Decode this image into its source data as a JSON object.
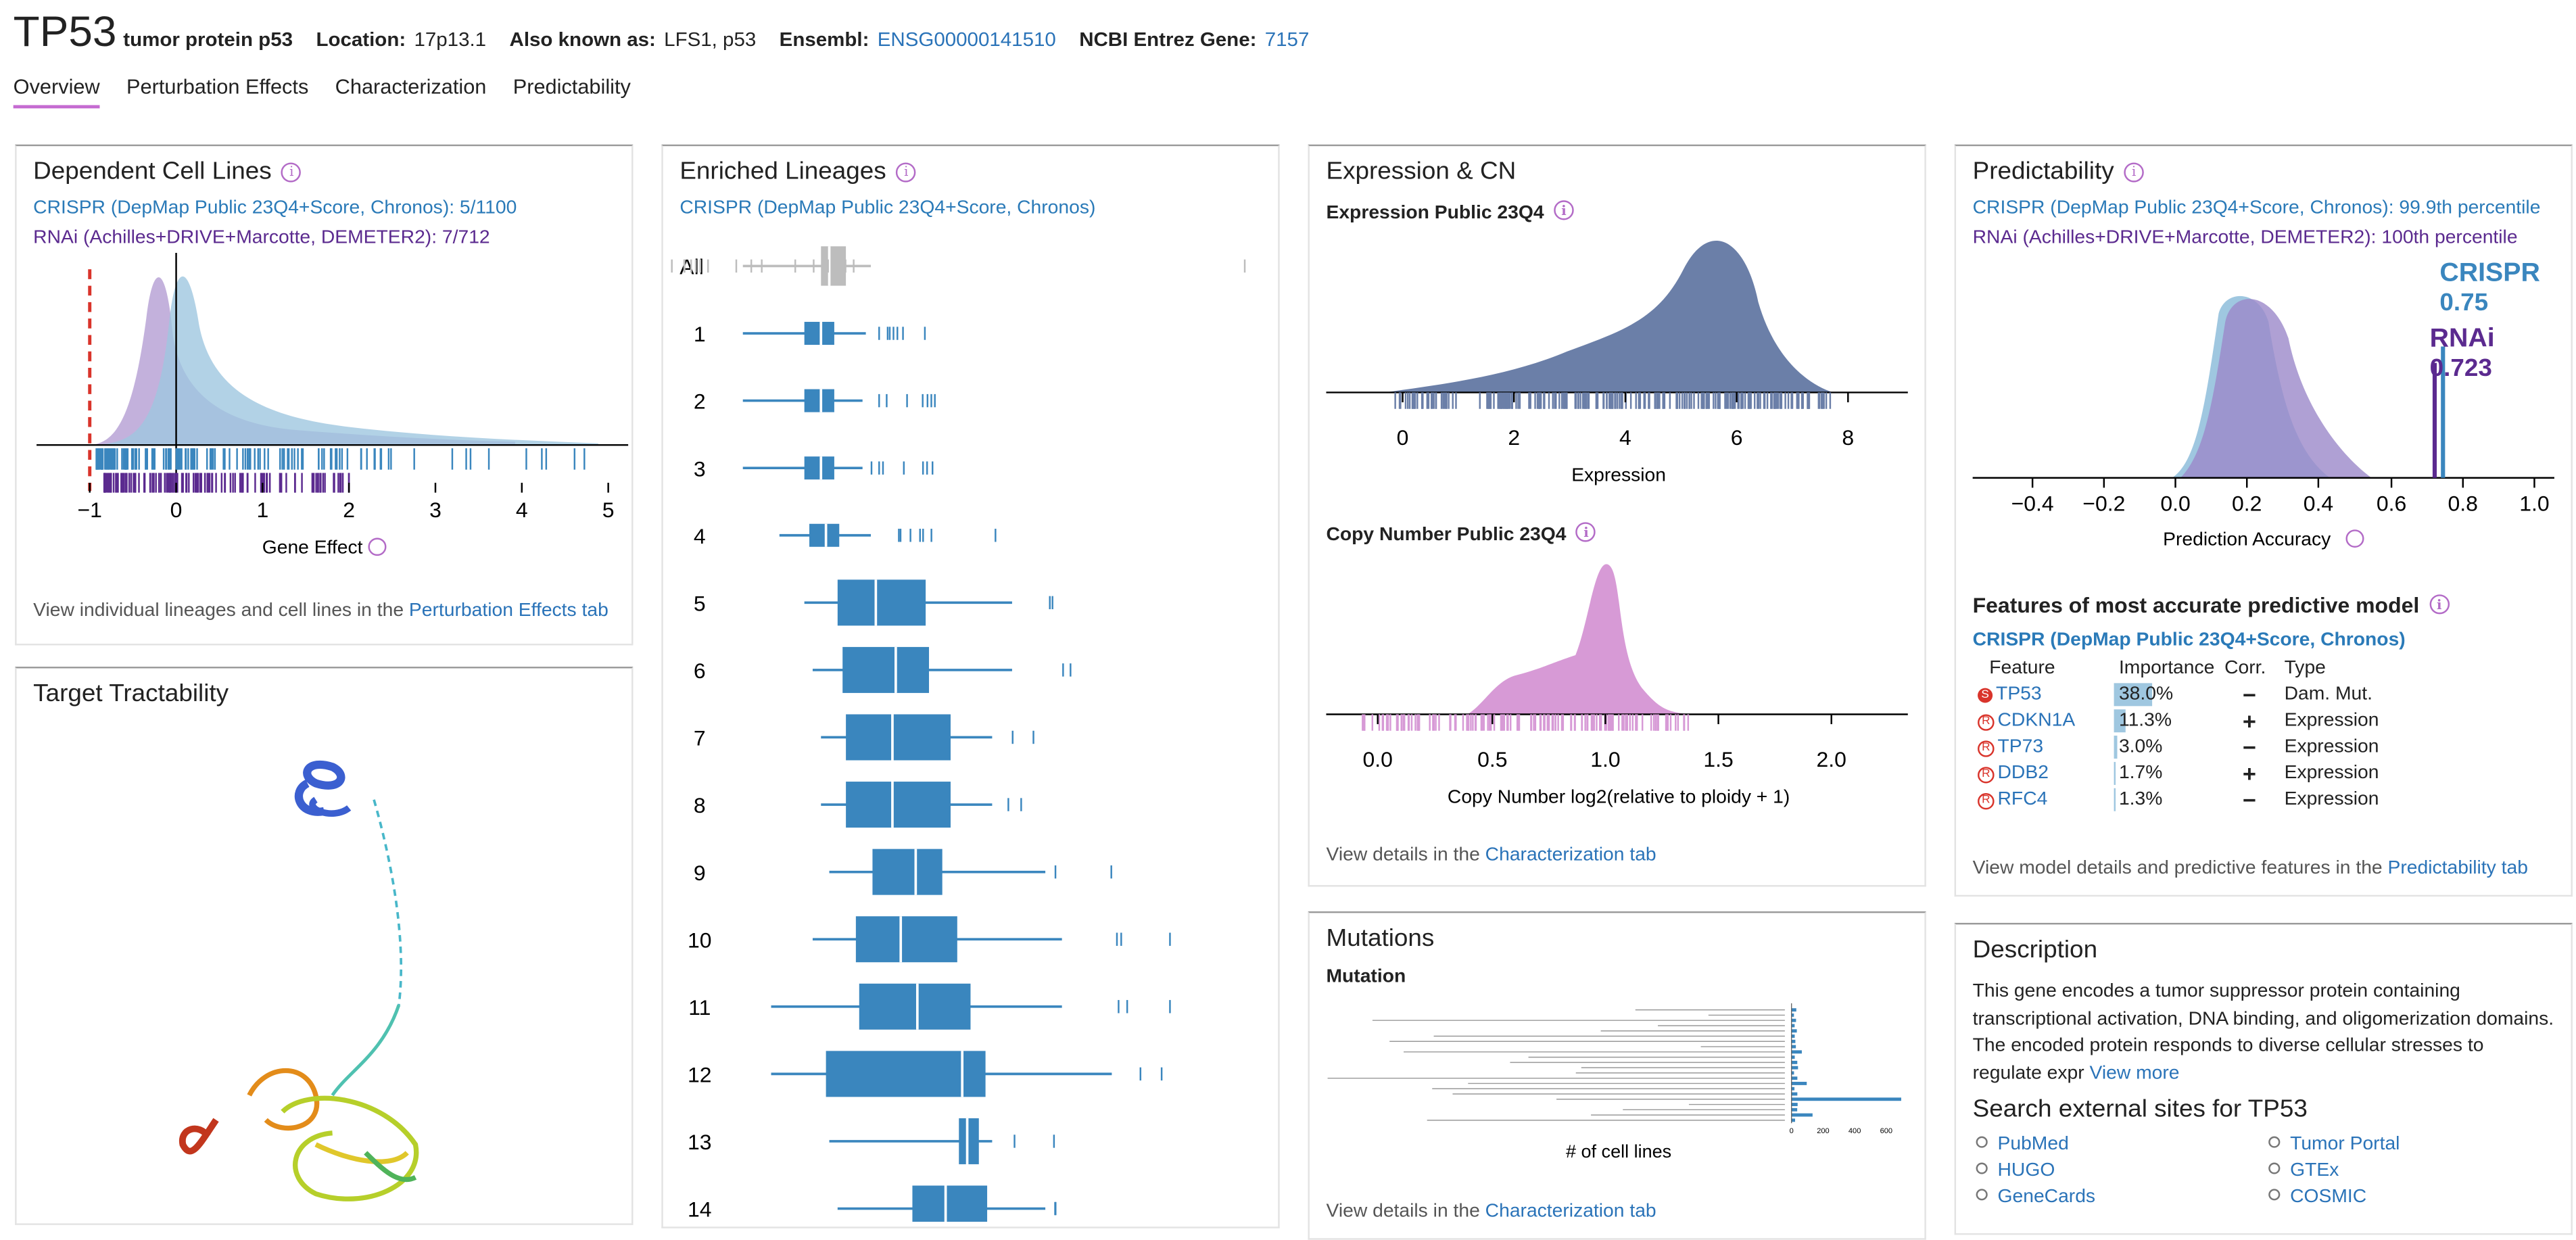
{
  "gene": {
    "symbol": "TP53",
    "name": "tumor protein p53",
    "location_label": "Location:",
    "location": "17p13.1",
    "aka_label": "Also known as:",
    "aka": "LFS1, p53",
    "ensembl_label": "Ensembl:",
    "ensembl": "ENSG00000141510",
    "entrez_label": "NCBI Entrez Gene:",
    "entrez": "7157"
  },
  "tabs": [
    "Overview",
    "Perturbation Effects",
    "Characterization",
    "Predictability"
  ],
  "colors": {
    "crispr": "#3a86be",
    "crispr_light": "#9fc7e0",
    "rnai": "#5b2a8f",
    "rnai_light": "#b9a3d6",
    "expression": "#6b7fa8",
    "copy_number": "#d79ad6",
    "accent": "#c56bd1"
  },
  "dependent": {
    "title": "Dependent Cell Lines",
    "crispr_line": "CRISPR (DepMap Public 23Q4+Score, Chronos): 5/1100",
    "rnai_line": "RNAi (Achilles+DRIVE+Marcotte, DEMETER2): 7/712",
    "xlabel": "Gene Effect",
    "ticks": [
      "−1",
      "0",
      "1",
      "2",
      "3",
      "4",
      "5"
    ],
    "note_prefix": "View individual lineages and cell lines in the ",
    "note_link": "Perturbation Effects tab"
  },
  "tractability": {
    "title": "Target Tractability",
    "structure_icon": "protein-structure-icon"
  },
  "lineages": {
    "title": "Enriched Lineages",
    "subtitle": "CRISPR (DepMap Public 23Q4+Score, Chronos)",
    "rows": [
      "All",
      "1",
      "2",
      "3",
      "4",
      "5",
      "6",
      "7",
      "8",
      "9",
      "10",
      "11",
      "12",
      "13",
      "14"
    ]
  },
  "expression": {
    "title": "Expression & CN",
    "expr_sub": "Expression Public 23Q4",
    "expr_ticks": [
      "0",
      "2",
      "4",
      "6",
      "8"
    ],
    "expr_xlabel": "Expression",
    "cn_sub": "Copy Number Public 23Q4",
    "cn_ticks": [
      "0.0",
      "0.5",
      "1.0",
      "1.5",
      "2.0"
    ],
    "cn_xlabel": "Copy Number log2(relative to ploidy + 1)",
    "note_prefix": "View details in the ",
    "note_link": "Characterization tab"
  },
  "mutations": {
    "title": "Mutations",
    "sub": "Mutation",
    "xlabel": "# of cell lines",
    "ticks": [
      "0",
      "200",
      "400",
      "600"
    ],
    "note_prefix": "View details in the ",
    "note_link": "Characterization tab"
  },
  "predictability": {
    "title": "Predictability",
    "crispr_line": "CRISPR (DepMap Public 23Q4+Score, Chronos): 99.9th percentile",
    "rnai_line": "RNAi (Achilles+DRIVE+Marcotte, DEMETER2): 100th percentile",
    "crispr_label": "CRISPR",
    "crispr_value": "0.75",
    "rnai_label": "RNAi",
    "rnai_value": "0.723",
    "ticks": [
      "−0.4",
      "−0.2",
      "0.0",
      "0.2",
      "0.4",
      "0.6",
      "0.8",
      "1.0"
    ],
    "xlabel": "Prediction Accuracy",
    "features_title": "Features of most accurate predictive model",
    "features_sub": "CRISPR (DepMap Public 23Q4+Score, Chronos)",
    "headers": [
      "Feature",
      "Importance",
      "Corr.",
      "Type"
    ],
    "features": [
      {
        "badge": "S",
        "name": "TP53",
        "importance": "38.0%",
        "frac": 0.38,
        "corr": "−",
        "type": "Dam. Mut."
      },
      {
        "badge": "R",
        "name": "CDKN1A",
        "importance": "11.3%",
        "frac": 0.113,
        "corr": "+",
        "type": "Expression"
      },
      {
        "badge": "R",
        "name": "TP73",
        "importance": "3.0%",
        "frac": 0.03,
        "corr": "−",
        "type": "Expression"
      },
      {
        "badge": "R",
        "name": "DDB2",
        "importance": "1.7%",
        "frac": 0.017,
        "corr": "+",
        "type": "Expression"
      },
      {
        "badge": "R",
        "name": "RFC4",
        "importance": "1.3%",
        "frac": 0.013,
        "corr": "−",
        "type": "Expression"
      }
    ],
    "note_prefix": "View model details and predictive features in the ",
    "note_link": "Predictability tab"
  },
  "description": {
    "title": "Description",
    "text": "This gene encodes a tumor suppressor protein containing transcriptional activation, DNA binding, and oligomerization domains. The encoded protein responds to diverse cellular stresses to regulate expr",
    "more": "View more",
    "search_title": "Search external sites for TP53",
    "links_left": [
      "PubMed",
      "HUGO",
      "GeneCards"
    ],
    "links_right": [
      "Tumor Portal",
      "GTEx",
      "COSMIC"
    ]
  }
}
